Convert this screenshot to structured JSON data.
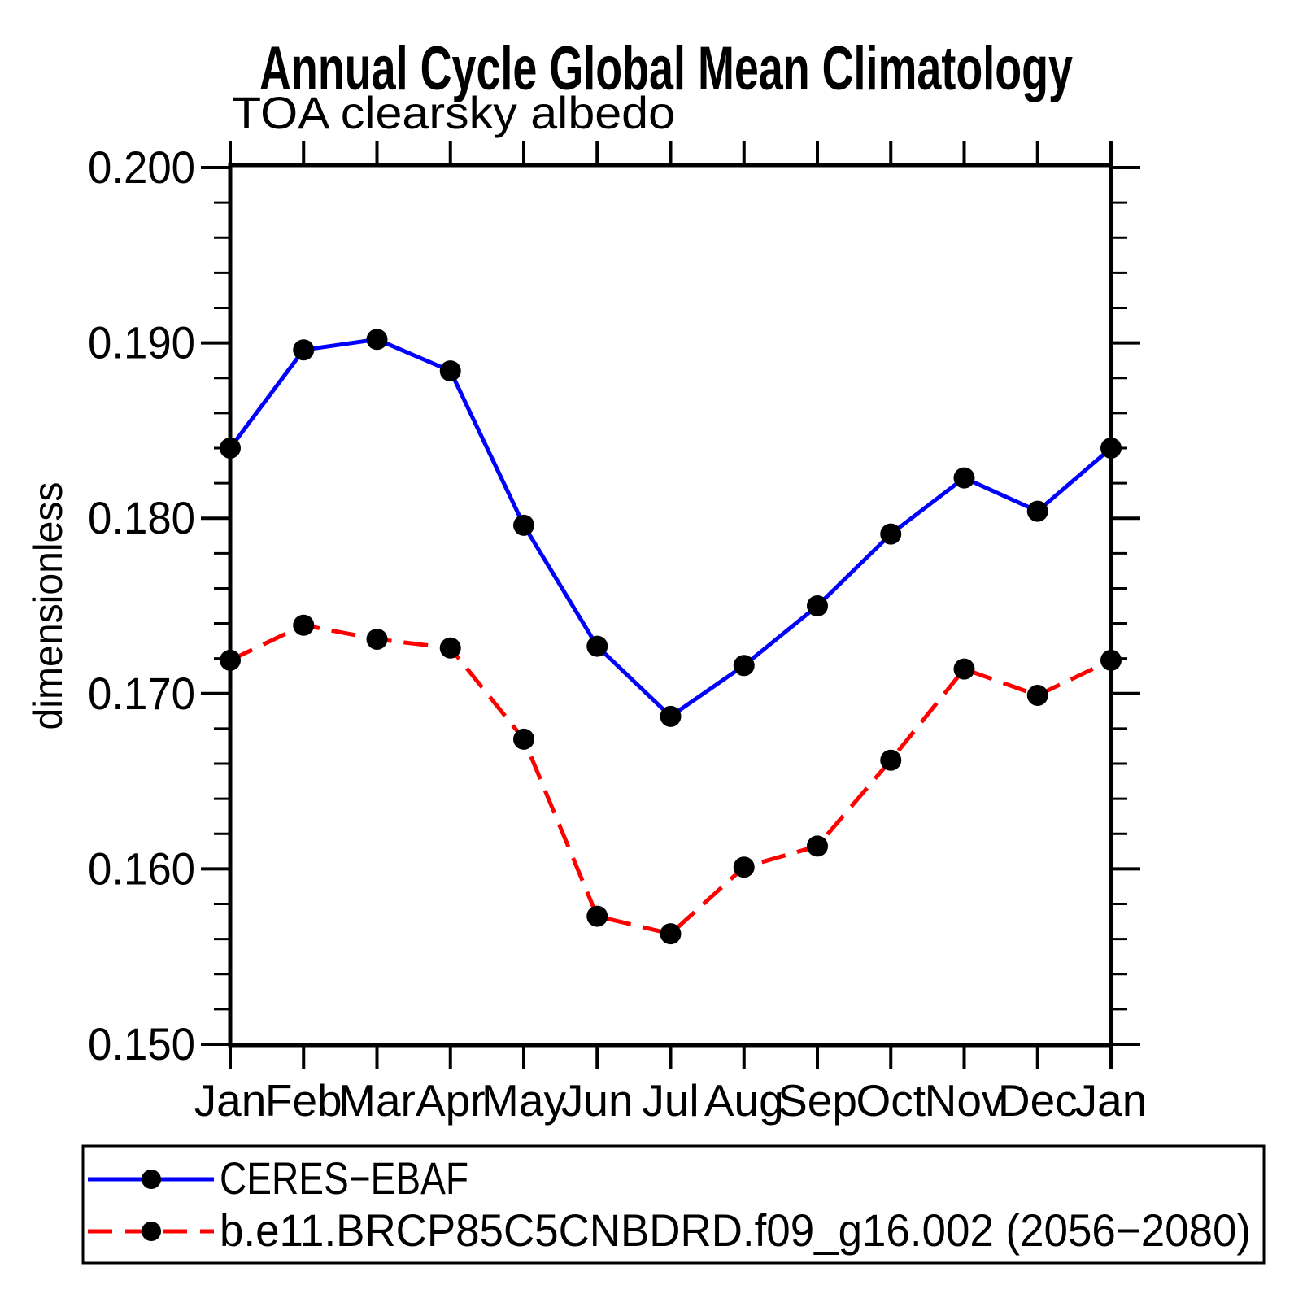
{
  "page": {
    "title": "Annual Cycle Global Mean Climatology",
    "subtitle": "TOA clearsky albedo"
  },
  "chart_data": {
    "type": "line",
    "title": "Annual Cycle Global Mean Climatology",
    "subtitle": "TOA clearsky albedo",
    "xlabel": "",
    "ylabel": "dimensionless",
    "categories": [
      "Jan",
      "Feb",
      "Mar",
      "Apr",
      "May",
      "Jun",
      "Jul",
      "Aug",
      "Sep",
      "Oct",
      "Nov",
      "Dec",
      "Jan"
    ],
    "ylim": [
      0.15,
      0.2
    ],
    "ytick_minor_step": 0.002,
    "yticks": [
      {
        "value": 0.15,
        "label": "0.150"
      },
      {
        "value": 0.16,
        "label": "0.160"
      },
      {
        "value": 0.17,
        "label": "0.170"
      },
      {
        "value": 0.18,
        "label": "0.180"
      },
      {
        "value": 0.19,
        "label": "0.190"
      },
      {
        "value": 0.2,
        "label": "0.200"
      }
    ],
    "grid": false,
    "legend_position": "bottom",
    "axis_color": "#000000",
    "marker_radius": 13,
    "series": [
      {
        "name": "CERES−EBAF",
        "color": "#0000ff",
        "style": "solid",
        "marker": "circle",
        "marker_color": "#000000",
        "values": [
          0.184,
          0.1896,
          0.1902,
          0.1884,
          0.1796,
          0.1727,
          0.1687,
          0.1716,
          0.175,
          0.1791,
          0.1823,
          0.1804,
          0.184
        ]
      },
      {
        "name": "b.e11.BRCP85C5CNBDRD.f09_g16.002 (2056−2080)",
        "color": "#ff0000",
        "style": "dashed",
        "marker": "circle",
        "marker_color": "#000000",
        "values": [
          0.1719,
          0.1739,
          0.1731,
          0.1726,
          0.1674,
          0.1573,
          0.1563,
          0.1601,
          0.1613,
          0.1662,
          0.1714,
          0.1699,
          0.1719
        ]
      }
    ]
  }
}
